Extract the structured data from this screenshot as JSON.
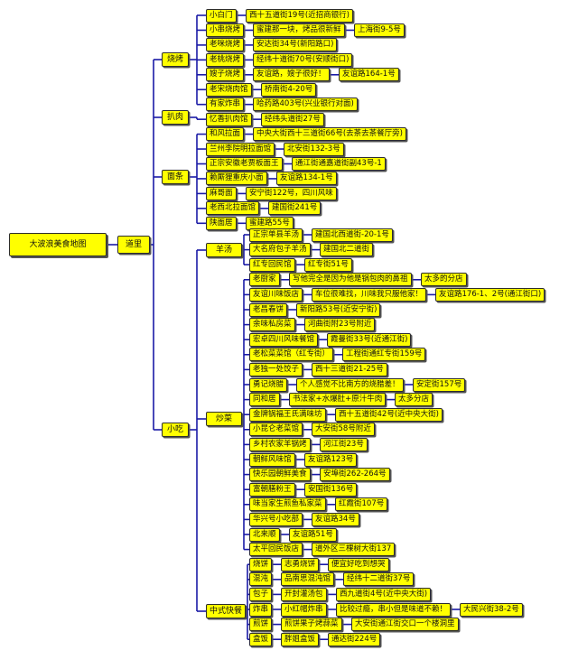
{
  "title": "大波浪美食地图",
  "hub": "道里",
  "categories": [
    {
      "name": "烧烤",
      "items": [
        [
          "小白门",
          "西十五道街19号(近招商银行)"
        ],
        [
          "小串烧烤",
          "蜜建那一块，烤品很新鲜",
          "上海街9-5号"
        ],
        [
          "老咪烧烤",
          "安达街34号(新阳路口)"
        ],
        [
          "老桃烧烤",
          "经纬十道街70号(安顺街口)"
        ],
        [
          "嫂子烧烤",
          "友谊路，嫂子很好！",
          "友谊路164-1号"
        ],
        [
          "老宋烧肉馆",
          "桥南街4-20号"
        ],
        [
          "有家炸串",
          "哈药路403号(兴业银行对面)"
        ]
      ]
    },
    {
      "name": "扒肉",
      "items": [
        [
          "忆香扒肉馆",
          "经纬头道街27号"
        ]
      ]
    },
    {
      "name": "面条",
      "items": [
        [
          "和风拉面",
          "中央大街西十三道街66号(去茶去茶餐厅旁)"
        ],
        [
          "兰州李院明拉面馆",
          "北安街132-3号"
        ],
        [
          "正宗安徽老贾板面王",
          "通江街通嘉道街副43号-1"
        ],
        [
          "赖厮狸重庆小面",
          "友谊路134-1号"
        ],
        [
          "麻哥面",
          "安宁街122号，四川风味"
        ],
        [
          "老西北拉面馆",
          "建国街241号"
        ],
        [
          "陕面居",
          "蜜建路55号"
        ]
      ]
    },
    {
      "name": "小吃",
      "subgroups": [
        {
          "name": "羊汤",
          "items": [
            [
              "正宗单县羊汤",
              "建国北西道街-20-1号"
            ],
            [
              "大名府包子羊汤",
              "建国北二道街"
            ],
            [
              "红专回民馆",
              "红专街51号"
            ]
          ]
        },
        {
          "name": "炒菜",
          "items": [
            [
              "老厨家",
              "写他完全是因为他是锅包肉的鼻祖",
              "太多的分店"
            ],
            [
              "友谊川味饭店",
              "车位很难找，川味我只服他家！",
              "友谊路176-1、2号(通江街口)"
            ],
            [
              "老昌春饼",
              "新阳路53号(近安宁街)"
            ],
            [
              "余味私房菜",
              "河曲街附23号附近"
            ],
            [
              "宏卓四川风味餐馆",
              "霞曼街33号(近通江街)"
            ],
            [
              "老松菜菜馆（红专街）",
              "工程街通红专街159号"
            ],
            [
              "老独一处饺子",
              "西十三道街21-25号"
            ],
            [
              "勇记烧腊",
              "个人感觉不比南方的烧腊差！",
              "安定街157号"
            ],
            [
              "同和居",
              "书法家+水爆肚+原汁牛肉",
              "太多分店"
            ],
            [
              "金牌锅福王氏满味坊",
              "西十五道街42号(近中央大街)"
            ],
            [
              "小昆仑老菜馆",
              "大安街58号附近"
            ],
            [
              "乡村农家羊锅烤",
              "河江街23号"
            ],
            [
              "朝鲜风味馆",
              "友谊路123号"
            ],
            [
              "快乐园朝鲜美食",
              "安埠街262-264号"
            ],
            [
              "富朝膳粉王",
              "安国街136号"
            ],
            [
              "味当家生煎鱼私家菜",
              "红霞街107号"
            ],
            [
              "华兴号小吃部",
              "友谊路34号"
            ],
            [
              "北来顺",
              "友谊路51号"
            ],
            [
              "太平回民饭店",
              "道外区三棵树大街137"
            ]
          ]
        },
        {
          "name": "中式快餐",
          "items": [
            [
              "烧饼",
              "志勇烧饼",
              "便宜好吃到想哭"
            ],
            [
              "混沌",
              "品南思混沌馆",
              "经纬十二道街37号"
            ],
            [
              "包子",
              "开封灌汤包",
              "西九道街4号(近中央大街)"
            ],
            [
              "炸串",
              "小红帽炸串",
              "比较过瘾，串小但是味道不赖！",
              "大民兴街38-2号"
            ],
            [
              "煎饼",
              "煎饼果子烤蒜菜",
              "大安街通江街交口一个楼洞里"
            ],
            [
              "盒饭",
              "胖姐盒饭",
              "通达街224号"
            ]
          ]
        }
      ]
    }
  ],
  "colors": {
    "line": "#1a1aa6",
    "box": "#ffff00",
    "border": "#2d2d2d"
  }
}
